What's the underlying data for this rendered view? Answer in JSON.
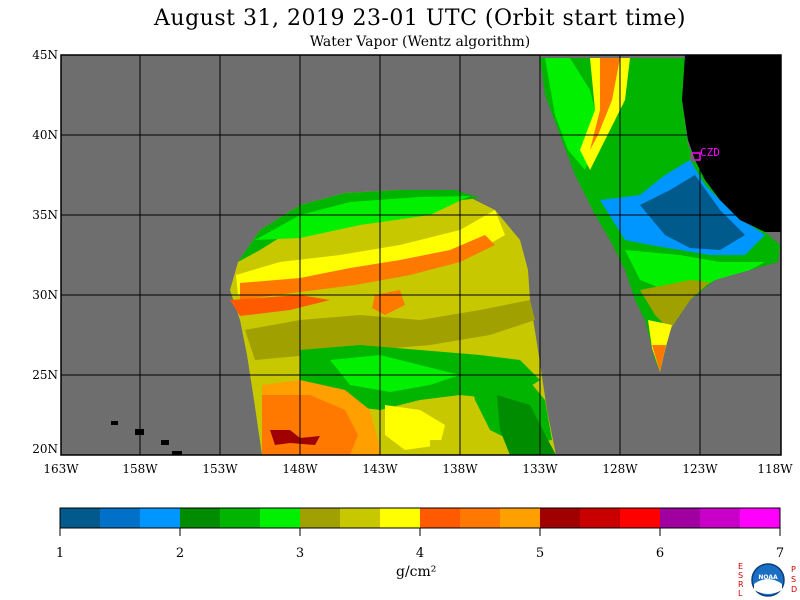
{
  "title": "August 31, 2019  23-01 UTC  (Orbit start time)",
  "subtitle": "Water Vapor (Wentz algorithm)",
  "station_label": "CZD",
  "units": "g/cm²",
  "latitude_labels": [
    "45N",
    "40N",
    "35N",
    "30N",
    "25N",
    "20N"
  ],
  "longitude_labels": [
    "163W",
    "158W",
    "153W",
    "148W",
    "143W",
    "138W",
    "133W",
    "128W",
    "123W",
    "118W"
  ],
  "colorbar": {
    "tick_labels": [
      "1",
      "2",
      "3",
      "4",
      "5",
      "6",
      "7"
    ],
    "colors": [
      "#005a8c",
      "#0070c8",
      "#0096ff",
      "#008c00",
      "#00b400",
      "#00f000",
      "#a0a000",
      "#c8c800",
      "#ffff00",
      "#ff5a00",
      "#ff7800",
      "#ffa000",
      "#a00000",
      "#c80000",
      "#ff0000",
      "#a000a0",
      "#c800c8",
      "#ff00ff"
    ]
  },
  "logo": {
    "left_letters": [
      "E",
      "S",
      "R",
      "L"
    ],
    "right_letters": [
      "P",
      "S",
      "D"
    ],
    "center_text": "NOAA"
  }
}
